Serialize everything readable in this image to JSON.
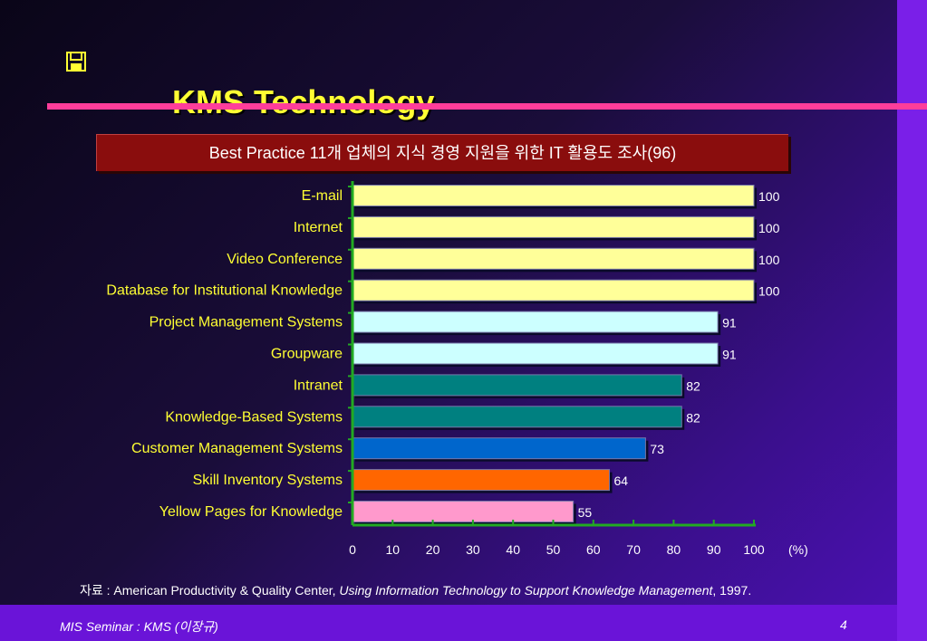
{
  "slide": {
    "title": "KMS Technology",
    "title_icon": "disk-icon",
    "banner": "Best Practice 11개 업체의 지식 경영 지원을 위한 IT 활용도 조사(96)",
    "source_prefix": "자료 : American Productivity & Quality Center, ",
    "source_italic": "Using Information Technology to Support Knowledge Management",
    "source_suffix": ", 1997.",
    "footer_left": "MIS Seminar : KMS (이장규)",
    "page_number": "4",
    "colors": {
      "title": "#ffff33",
      "pink_rule": "#ff3d9a",
      "banner_bg": "#8a0d0d",
      "footer_band": "#6a14d8",
      "axis": "#22aa22"
    }
  },
  "chart_data": {
    "type": "bar",
    "orientation": "horizontal",
    "categories": [
      "E-mail",
      "Internet",
      "Video Conference",
      "Database for Institutional Knowledge",
      "Project Management Systems",
      "Groupware",
      "Intranet",
      "Knowledge-Based Systems",
      "Customer Management Systems",
      "Skill Inventory Systems",
      "Yellow Pages for Knowledge"
    ],
    "values": [
      100,
      100,
      100,
      100,
      91,
      91,
      82,
      82,
      73,
      64,
      55
    ],
    "bar_colors": [
      "#ffff99",
      "#ffff99",
      "#ffff99",
      "#ffff99",
      "#ccffff",
      "#ccffff",
      "#008080",
      "#008080",
      "#0066cc",
      "#ff6600",
      "#ff99cc"
    ],
    "x_ticks": [
      "0",
      "10",
      "20",
      "30",
      "40",
      "50",
      "60",
      "70",
      "80",
      "90",
      "100"
    ],
    "x_unit": "(%)",
    "xlim": [
      0,
      100
    ]
  }
}
